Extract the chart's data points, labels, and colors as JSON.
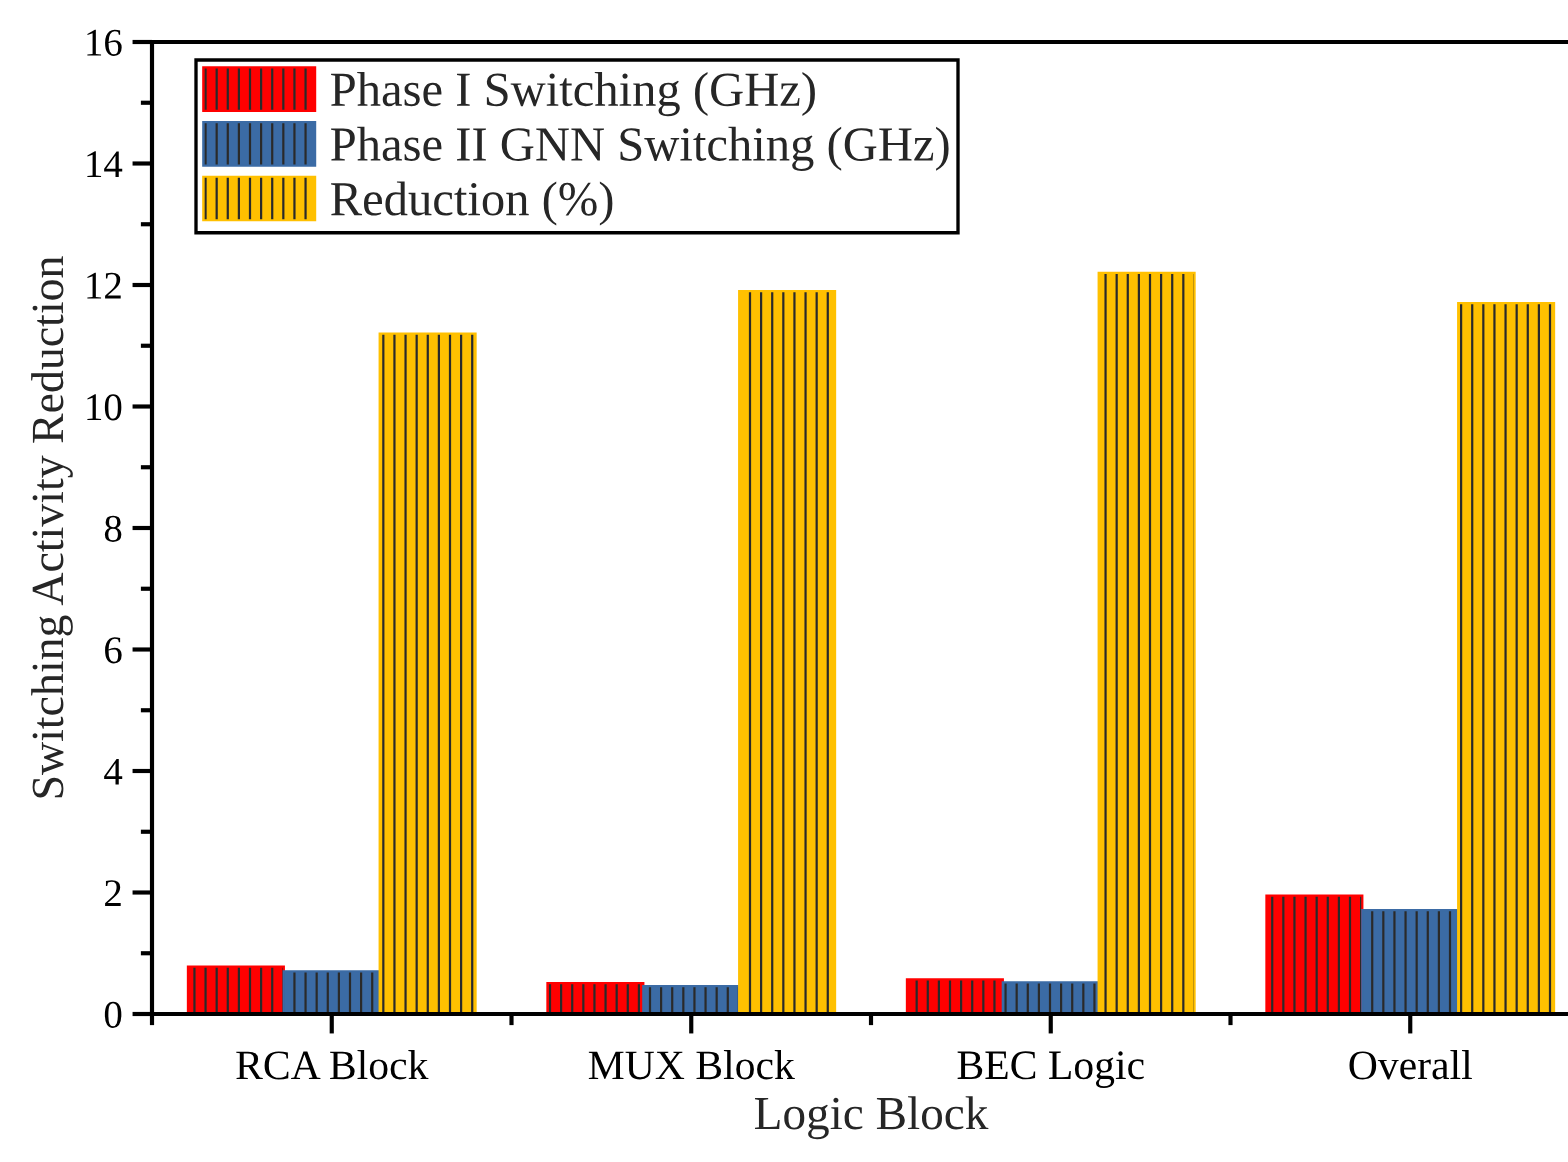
{
  "chart_data": {
    "type": "bar",
    "xlabel": "Logic Block",
    "ylabel": "Switching Activity Reduction",
    "categories": [
      "RCA Block",
      "MUX Block",
      "BEC Logic",
      "Overall"
    ],
    "series": [
      {
        "name": "Phase I Switching (GHz)",
        "color": "#ff0000",
        "values": [
          0.78,
          0.51,
          0.57,
          1.95
        ]
      },
      {
        "name": "Phase II GNN Switching (GHz)",
        "color": "#3b6ba5",
        "values": [
          0.7,
          0.46,
          0.52,
          1.71
        ]
      },
      {
        "name": "Reduction (%)",
        "color": "#ffc000",
        "values": [
          11.2,
          11.9,
          12.2,
          11.7
        ]
      }
    ],
    "ylim": [
      0,
      16
    ],
    "yticks": [
      0,
      2,
      4,
      6,
      8,
      10,
      12,
      14,
      16
    ],
    "legend": "top left"
  }
}
